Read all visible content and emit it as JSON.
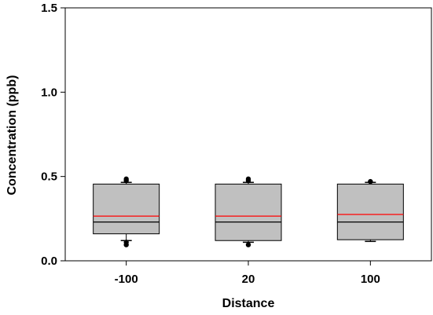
{
  "chart_data": {
    "type": "box",
    "title": "",
    "xlabel": "Distance",
    "ylabel": "Concentration (ppb)",
    "ylim": [
      0,
      1.5
    ],
    "yticks": [
      0.0,
      0.5,
      1.0,
      1.5
    ],
    "ytick_labels": [
      "0.0",
      "0.5",
      "1.0",
      "1.5"
    ],
    "grid": false,
    "legend": "none",
    "categories": [
      "-100",
      "20",
      "100"
    ],
    "boxes": [
      {
        "category": "-100",
        "q1": 0.16,
        "median": 0.23,
        "mean": 0.265,
        "q3": 0.455,
        "whisker_low": 0.12,
        "whisker_high": 0.465,
        "outliers": [
          0.095,
          0.11,
          0.475,
          0.485
        ]
      },
      {
        "category": "20",
        "q1": 0.12,
        "median": 0.23,
        "mean": 0.265,
        "q3": 0.455,
        "whisker_low": 0.11,
        "whisker_high": 0.465,
        "outliers": [
          0.095,
          0.475,
          0.485
        ]
      },
      {
        "category": "100",
        "q1": 0.125,
        "median": 0.23,
        "mean": 0.275,
        "q3": 0.455,
        "whisker_low": 0.115,
        "whisker_high": 0.465,
        "outliers": [
          0.47
        ]
      }
    ],
    "colors": {
      "box_fill": "#c0c0c0",
      "box_stroke": "#000000",
      "median": "#000000",
      "mean": "#ff0000",
      "outlier": "#000000"
    }
  }
}
